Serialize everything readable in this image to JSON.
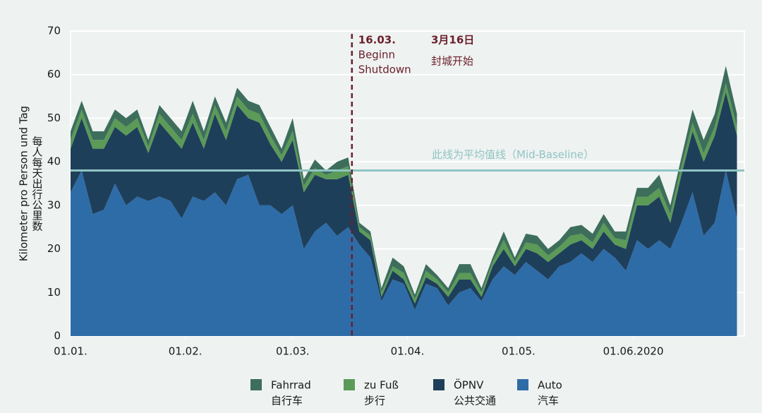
{
  "chart_data": {
    "type": "stacked-area",
    "y_label": "Kilometer pro Person und Tag",
    "y_label_zh": "每人每天出行公里数",
    "xlim": [
      0,
      182
    ],
    "xticks": [
      {
        "value": 0,
        "label": "01.01."
      },
      {
        "value": 31,
        "label": "01.02."
      },
      {
        "value": 60,
        "label": "01.03."
      },
      {
        "value": 91,
        "label": "01.04."
      },
      {
        "value": 121,
        "label": "01.05."
      },
      {
        "value": 152,
        "label": "01.06.2020"
      }
    ],
    "ylim": [
      0,
      70
    ],
    "yticks": [
      0,
      10,
      20,
      30,
      40,
      50,
      60,
      70
    ],
    "grid": true,
    "x": [
      0,
      3,
      6,
      9,
      12,
      15,
      18,
      21,
      24,
      27,
      30,
      33,
      36,
      39,
      42,
      45,
      48,
      51,
      54,
      57,
      60,
      63,
      66,
      69,
      72,
      75,
      78,
      81,
      84,
      87,
      90,
      93,
      96,
      99,
      102,
      105,
      108,
      111,
      114,
      117,
      120,
      123,
      126,
      129,
      132,
      135,
      138,
      141,
      144,
      147,
      150,
      153,
      156,
      159,
      162,
      165,
      168,
      171,
      174,
      177,
      180
    ],
    "series": [
      {
        "name": "Fahrrad",
        "name_zh": "自行车",
        "color": "#3d6e5c",
        "values": [
          2,
          2,
          2,
          2,
          2,
          2,
          2,
          1.5,
          2,
          2,
          2,
          3,
          2,
          2,
          2,
          2,
          2,
          2,
          2,
          1.5,
          3,
          1.5,
          2,
          1,
          2,
          2,
          1,
          1,
          1,
          2,
          1.5,
          1,
          1.5,
          1,
          1,
          2,
          2,
          1,
          1,
          2,
          1,
          2,
          2,
          1.5,
          1.5,
          2,
          2,
          2,
          2,
          1.5,
          2,
          2,
          2,
          3,
          2,
          2,
          3,
          3,
          3,
          4,
          3
        ]
      },
      {
        "name": "zu Fuß",
        "name_zh": "步行",
        "color": "#5b9a57",
        "values": [
          2,
          2,
          2,
          2,
          2,
          2,
          2,
          1.5,
          2,
          2,
          2,
          2,
          2,
          2,
          2,
          2,
          2,
          2,
          2,
          1.5,
          2,
          1.5,
          1.5,
          1,
          2,
          2,
          1,
          1,
          1,
          1,
          1.5,
          1,
          1.5,
          1,
          1,
          1.5,
          1.5,
          1,
          1,
          2,
          1,
          1.5,
          2,
          1.5,
          1.5,
          2,
          1.5,
          1.5,
          2,
          1.5,
          2,
          2,
          2,
          2,
          2,
          2,
          2,
          2,
          2,
          2,
          2
        ]
      },
      {
        "name": "ÖPNV",
        "name_zh": "公共交通",
        "color": "#1e3f5a",
        "values": [
          10,
          12,
          15,
          14,
          13,
          16,
          16,
          11,
          17,
          15,
          16,
          17,
          12,
          18,
          15,
          17,
          13,
          19,
          14,
          12,
          15,
          13,
          13,
          10,
          13,
          12,
          3,
          4,
          1,
          2,
          1,
          1.5,
          1.5,
          1,
          2,
          3,
          2,
          1,
          3,
          4,
          2,
          3,
          4,
          4,
          3,
          4,
          3,
          3,
          4,
          3,
          5,
          8,
          10,
          10,
          6,
          11,
          14,
          17,
          20,
          18,
          19
        ]
      },
      {
        "name": "Auto",
        "name_zh": "汽车",
        "color": "#2e6ca8",
        "values": [
          33,
          38,
          28,
          29,
          35,
          30,
          32,
          31,
          32,
          31,
          27,
          32,
          31,
          33,
          30,
          36,
          37,
          30,
          30,
          28,
          30,
          20,
          24,
          26,
          23,
          25,
          21,
          18,
          8,
          13,
          12,
          6,
          12,
          11,
          7,
          10,
          11,
          8,
          13,
          16,
          14,
          17,
          15,
          13,
          16,
          17,
          19,
          17,
          20,
          18,
          15,
          22,
          20,
          22,
          20,
          26,
          33,
          23,
          26,
          38,
          27
        ]
      }
    ],
    "shutdown": {
      "x": 76,
      "label_de": [
        "16.03.",
        "Beginn",
        "Shutdown"
      ],
      "label_zh": [
        "3月16日",
        "封城开始"
      ]
    },
    "baseline": {
      "value": 38,
      "label": "此线为平均值线（Mid-Baseline）"
    }
  }
}
